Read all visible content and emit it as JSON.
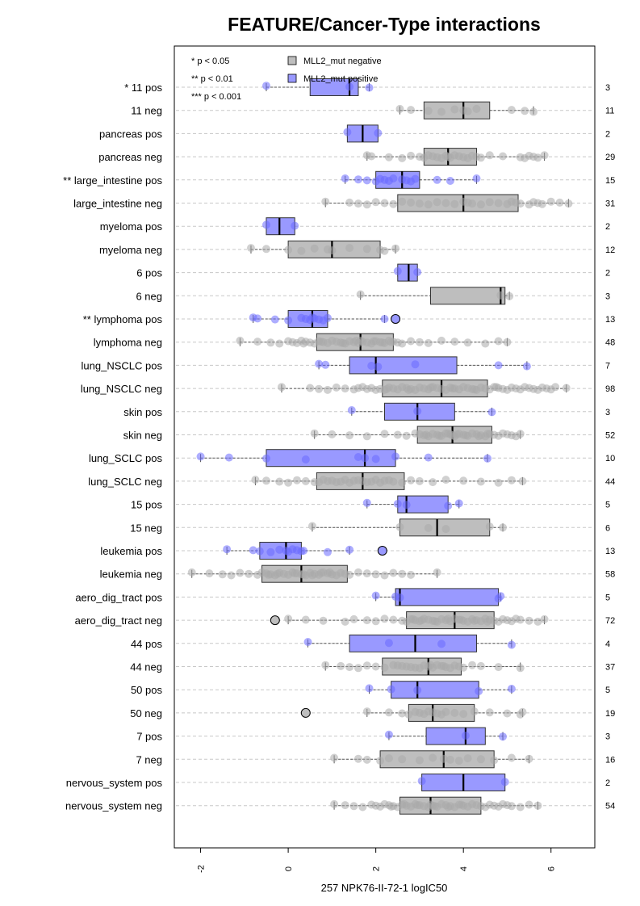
{
  "chart_data": {
    "type": "boxplot",
    "title": "FEATURE/Cancer-Type interactions",
    "xlabel": "257 NPK76-II-72-1 logIC50",
    "xlim": [
      -2.6,
      7.0
    ],
    "xticks": [
      "-2",
      "0",
      "2",
      "4",
      "6"
    ],
    "xtick_values": [
      -2,
      0,
      2,
      4,
      6
    ],
    "grid": true,
    "orientation": "horizontal",
    "colors": {
      "negative": "#bebebe",
      "positive": "#9999ff",
      "negative_point": "#a9a9a9",
      "positive_point": "#6a6aff"
    },
    "legend": {
      "placement": "top-left",
      "significance": [
        "* p < 0.05",
        "** p < 0.01",
        "*** p < 0.001"
      ],
      "entries": [
        {
          "label": "MLL2_mut negative",
          "color": "#bebebe"
        },
        {
          "label": "MLL2_mut positive",
          "color": "#9999ff"
        }
      ]
    },
    "rows": [
      {
        "label": "* 11 pos",
        "count": "3",
        "group": "pos",
        "wlo": -0.5,
        "q1": 0.5,
        "med": 1.4,
        "q3": 1.6,
        "whi": 1.85,
        "points": [
          -0.5,
          1.4,
          1.85
        ]
      },
      {
        "label": "11 neg",
        "count": "11",
        "group": "neg",
        "wlo": 2.55,
        "q1": 3.1,
        "med": 4.0,
        "q3": 4.6,
        "whi": 5.6,
        "points": [
          2.55,
          2.8,
          3.2,
          3.5,
          3.8,
          4.0,
          4.1,
          4.3,
          5.1,
          5.4,
          5.6
        ]
      },
      {
        "label": "pancreas pos",
        "count": "2",
        "group": "pos",
        "wlo": 1.35,
        "q1": 1.35,
        "med": 1.7,
        "q3": 2.05,
        "whi": 2.05,
        "points": [
          1.35,
          2.05
        ]
      },
      {
        "label": "pancreas neg",
        "count": "29",
        "group": "neg",
        "wlo": 1.8,
        "q1": 3.1,
        "med": 3.65,
        "q3": 4.3,
        "whi": 5.85,
        "points": [
          1.8,
          1.9,
          2.3,
          2.6,
          2.8,
          3.0,
          3.1,
          3.2,
          3.3,
          3.4,
          3.5,
          3.6,
          3.65,
          3.7,
          3.8,
          3.9,
          4.0,
          4.1,
          4.2,
          4.3,
          4.4,
          4.6,
          4.9,
          5.3,
          5.4,
          5.5,
          5.6,
          5.7,
          5.85
        ]
      },
      {
        "label": "** large_intestine pos",
        "count": "15",
        "group": "pos",
        "wlo": 1.3,
        "q1": 2.0,
        "med": 2.6,
        "q3": 3.0,
        "whi": 4.3,
        "points": [
          1.3,
          1.6,
          1.8,
          2.0,
          2.1,
          2.2,
          2.3,
          2.4,
          2.6,
          2.7,
          2.8,
          2.9,
          3.4,
          3.7,
          4.3
        ]
      },
      {
        "label": "large_intestine neg",
        "count": "31",
        "group": "neg",
        "wlo": 0.85,
        "q1": 2.5,
        "med": 4.0,
        "q3": 5.25,
        "whi": 6.4,
        "points": [
          0.85,
          1.4,
          1.6,
          1.8,
          2.0,
          2.2,
          2.4,
          2.6,
          2.8,
          3.0,
          3.2,
          3.4,
          3.6,
          3.8,
          4.0,
          4.1,
          4.2,
          4.4,
          4.6,
          4.8,
          5.0,
          5.1,
          5.2,
          5.3,
          5.5,
          5.6,
          5.7,
          5.8,
          6.0,
          6.2,
          6.4
        ]
      },
      {
        "label": "myeloma pos",
        "count": "2",
        "group": "pos",
        "wlo": -0.5,
        "q1": -0.5,
        "med": -0.2,
        "q3": 0.15,
        "whi": 0.15,
        "points": [
          -0.5,
          0.15
        ]
      },
      {
        "label": "myeloma neg",
        "count": "12",
        "group": "neg",
        "wlo": -0.85,
        "q1": 0.0,
        "med": 1.0,
        "q3": 2.1,
        "whi": 2.45,
        "points": [
          -0.85,
          -0.5,
          0.0,
          0.3,
          0.6,
          0.9,
          1.0,
          1.4,
          1.8,
          2.1,
          2.2,
          2.45
        ]
      },
      {
        "label": "6 pos",
        "count": "2",
        "group": "pos",
        "wlo": 2.5,
        "q1": 2.5,
        "med": 2.75,
        "q3": 2.95,
        "whi": 2.95,
        "points": [
          2.5,
          2.95
        ]
      },
      {
        "label": "6 neg",
        "count": "3",
        "group": "neg",
        "wlo": 1.65,
        "q1": 3.25,
        "med": 4.85,
        "q3": 4.95,
        "whi": 5.05,
        "points": [
          1.65,
          4.85,
          5.05
        ]
      },
      {
        "label": "** lymphoma pos",
        "count": "13",
        "group": "pos",
        "wlo": -0.8,
        "q1": 0.0,
        "med": 0.55,
        "q3": 0.9,
        "whi": 2.2,
        "outliers": [
          2.45
        ],
        "points": [
          -0.8,
          -0.7,
          -0.3,
          0.0,
          0.3,
          0.4,
          0.5,
          0.55,
          0.6,
          0.7,
          0.8,
          0.9,
          2.2
        ]
      },
      {
        "label": "lymphoma neg",
        "count": "48",
        "group": "neg",
        "wlo": -1.1,
        "q1": 0.65,
        "med": 1.65,
        "q3": 2.4,
        "whi": 5.0,
        "points": [
          -1.1,
          -0.7,
          -0.4,
          -0.2,
          0.0,
          0.1,
          0.2,
          0.3,
          0.4,
          0.5,
          0.6,
          0.7,
          0.8,
          0.9,
          1.0,
          1.1,
          1.2,
          1.3,
          1.4,
          1.5,
          1.6,
          1.65,
          1.7,
          1.8,
          1.9,
          2.0,
          2.1,
          2.2,
          2.3,
          2.4,
          2.5,
          2.6,
          2.8,
          3.0,
          3.2,
          3.5,
          3.8,
          4.1,
          4.5,
          4.8,
          5.0,
          1.25,
          1.55,
          0.75,
          2.15,
          0.35,
          1.95,
          2.35
        ]
      },
      {
        "label": "lung_NSCLC pos",
        "count": "7",
        "group": "pos",
        "wlo": 0.7,
        "q1": 1.4,
        "med": 2.0,
        "q3": 3.85,
        "whi": 5.45,
        "points": [
          0.7,
          0.85,
          1.9,
          2.05,
          2.9,
          4.8,
          5.45
        ]
      },
      {
        "label": "lung_NSCLC neg",
        "count": "98",
        "group": "neg",
        "wlo": -0.15,
        "q1": 2.15,
        "med": 3.5,
        "q3": 4.55,
        "whi": 6.35,
        "points": [
          -0.15,
          0.5,
          0.7,
          0.9,
          1.1,
          1.3,
          1.5,
          1.7,
          1.9,
          2.1,
          2.2,
          2.3,
          2.4,
          2.5,
          2.6,
          2.7,
          2.8,
          2.9,
          3.0,
          3.1,
          3.2,
          3.3,
          3.4,
          3.5,
          3.6,
          3.7,
          3.8,
          3.9,
          4.0,
          4.1,
          4.2,
          4.3,
          4.4,
          4.5,
          4.6,
          4.7,
          4.8,
          4.9,
          5.0,
          5.1,
          5.2,
          5.3,
          5.4,
          5.5,
          5.6,
          5.7,
          5.8,
          5.9,
          6.0,
          6.1,
          6.35,
          2.25,
          2.75,
          3.25,
          3.75,
          4.25,
          4.75,
          1.6,
          1.8,
          2.0
        ]
      },
      {
        "label": "skin pos",
        "count": "3",
        "group": "pos",
        "wlo": 1.45,
        "q1": 2.2,
        "med": 2.95,
        "q3": 3.8,
        "whi": 4.65,
        "points": [
          1.45,
          2.95,
          4.65
        ]
      },
      {
        "label": "skin neg",
        "count": "52",
        "group": "neg",
        "wlo": 0.6,
        "q1": 2.95,
        "med": 3.75,
        "q3": 4.65,
        "whi": 5.3,
        "points": [
          0.6,
          1.0,
          1.4,
          1.8,
          2.2,
          2.5,
          2.7,
          2.9,
          3.0,
          3.1,
          3.2,
          3.3,
          3.4,
          3.5,
          3.6,
          3.7,
          3.75,
          3.8,
          3.9,
          4.0,
          4.1,
          4.2,
          4.3,
          4.4,
          4.5,
          4.6,
          4.7,
          4.8,
          4.9,
          5.0,
          5.1,
          5.2,
          5.3,
          3.15,
          3.45,
          3.65,
          3.85,
          4.05,
          4.35,
          4.55
        ]
      },
      {
        "label": "lung_SCLC pos",
        "count": "10",
        "group": "pos",
        "wlo": -2.0,
        "q1": -0.5,
        "med": 1.75,
        "q3": 2.45,
        "whi": 4.55,
        "points": [
          -2.0,
          -1.35,
          -0.5,
          0.4,
          1.6,
          1.75,
          2.0,
          2.45,
          3.2,
          4.55
        ]
      },
      {
        "label": "lung_SCLC neg",
        "count": "44",
        "group": "neg",
        "wlo": -0.75,
        "q1": 0.65,
        "med": 1.7,
        "q3": 2.65,
        "whi": 5.35,
        "points": [
          -0.75,
          -0.5,
          -0.2,
          0.0,
          0.2,
          0.4,
          0.6,
          0.8,
          1.0,
          1.2,
          1.4,
          1.6,
          1.7,
          1.8,
          2.0,
          2.2,
          2.4,
          2.6,
          2.8,
          3.0,
          3.3,
          3.6,
          4.0,
          4.4,
          4.8,
          5.1,
          5.35,
          1.1,
          1.3,
          1.5,
          1.9,
          2.1,
          2.3,
          0.9,
          0.7
        ]
      },
      {
        "label": "15 pos",
        "count": "5",
        "group": "pos",
        "wlo": 1.8,
        "q1": 2.5,
        "med": 2.7,
        "q3": 3.65,
        "whi": 3.9,
        "points": [
          1.8,
          2.5,
          2.7,
          3.65,
          3.9
        ]
      },
      {
        "label": "15 neg",
        "count": "6",
        "group": "neg",
        "wlo": 0.55,
        "q1": 2.55,
        "med": 3.4,
        "q3": 4.6,
        "whi": 4.9,
        "points": [
          0.55,
          2.55,
          3.2,
          3.6,
          4.6,
          4.9
        ]
      },
      {
        "label": "leukemia pos",
        "count": "13",
        "group": "pos",
        "wlo": -1.4,
        "q1": -0.65,
        "med": -0.05,
        "q3": 0.3,
        "whi": 1.4,
        "outliers": [
          2.15
        ],
        "points": [
          -1.4,
          -0.8,
          -0.65,
          -0.4,
          -0.2,
          -0.05,
          0.0,
          0.1,
          0.2,
          0.3,
          0.9,
          1.4,
          0.35
        ]
      },
      {
        "label": "leukemia neg",
        "count": "58",
        "group": "neg",
        "wlo": -2.2,
        "q1": -0.6,
        "med": 0.3,
        "q3": 1.35,
        "whi": 3.4,
        "points": [
          -2.2,
          -1.8,
          -1.5,
          -1.3,
          -1.1,
          -0.9,
          -0.7,
          -0.6,
          -0.5,
          -0.4,
          -0.3,
          -0.2,
          -0.1,
          0.0,
          0.1,
          0.2,
          0.3,
          0.4,
          0.5,
          0.6,
          0.7,
          0.8,
          0.9,
          1.0,
          1.1,
          1.2,
          1.3,
          1.4,
          1.6,
          1.8,
          2.0,
          2.2,
          2.4,
          2.6,
          2.8,
          3.4,
          0.15,
          0.35,
          0.55,
          0.75,
          -0.25,
          -0.45,
          0.95
        ]
      },
      {
        "label": "aero_dig_tract pos",
        "count": "5",
        "group": "pos",
        "wlo": 2.0,
        "q1": 2.45,
        "med": 2.55,
        "q3": 4.8,
        "whi": 4.85,
        "points": [
          2.0,
          2.45,
          2.55,
          4.8,
          4.85
        ]
      },
      {
        "label": "aero_dig_tract neg",
        "count": "72",
        "group": "neg",
        "wlo": 0.0,
        "q1": 2.7,
        "med": 3.8,
        "q3": 4.7,
        "whi": 5.85,
        "outliers": [
          -0.3
        ],
        "points": [
          0.0,
          0.4,
          0.8,
          1.3,
          1.5,
          1.8,
          2.0,
          2.2,
          2.4,
          2.6,
          2.7,
          2.8,
          2.9,
          3.0,
          3.1,
          3.2,
          3.3,
          3.4,
          3.5,
          3.6,
          3.7,
          3.8,
          3.9,
          4.0,
          4.1,
          4.2,
          4.3,
          4.4,
          4.5,
          4.6,
          4.7,
          4.8,
          4.9,
          5.0,
          5.1,
          5.2,
          5.3,
          5.5,
          5.7,
          5.85,
          3.05,
          3.35,
          3.65,
          3.95,
          4.25,
          4.55,
          2.85
        ]
      },
      {
        "label": "44 pos",
        "count": "4",
        "group": "pos",
        "wlo": 0.45,
        "q1": 1.4,
        "med": 2.9,
        "q3": 4.3,
        "whi": 5.1,
        "points": [
          0.45,
          2.3,
          3.5,
          5.1
        ]
      },
      {
        "label": "44 neg",
        "count": "37",
        "group": "neg",
        "wlo": 0.85,
        "q1": 2.15,
        "med": 3.2,
        "q3": 3.95,
        "whi": 5.3,
        "points": [
          0.85,
          1.2,
          1.4,
          1.6,
          1.8,
          2.0,
          2.2,
          2.4,
          2.6,
          2.8,
          3.0,
          3.1,
          3.2,
          3.3,
          3.4,
          3.5,
          3.6,
          3.7,
          3.8,
          3.9,
          4.0,
          4.2,
          4.4,
          4.8,
          5.3,
          2.5,
          2.7,
          2.9,
          3.25,
          3.55
        ]
      },
      {
        "label": "50 pos",
        "count": "5",
        "group": "pos",
        "wlo": 1.85,
        "q1": 2.35,
        "med": 2.95,
        "q3": 4.35,
        "whi": 5.1,
        "points": [
          1.85,
          2.35,
          2.95,
          4.35,
          5.1
        ]
      },
      {
        "label": "50 neg",
        "count": "19",
        "group": "neg",
        "wlo": 1.8,
        "q1": 2.75,
        "med": 3.3,
        "q3": 4.25,
        "whi": 5.35,
        "outliers": [
          0.4
        ],
        "points": [
          1.8,
          2.3,
          2.6,
          2.75,
          2.9,
          3.0,
          3.1,
          3.2,
          3.3,
          3.4,
          3.5,
          3.6,
          3.8,
          4.0,
          4.25,
          4.6,
          5.0,
          5.3,
          5.35
        ]
      },
      {
        "label": "7 pos",
        "count": "3",
        "group": "pos",
        "wlo": 2.3,
        "q1": 3.15,
        "med": 4.05,
        "q3": 4.5,
        "whi": 4.9,
        "points": [
          2.3,
          4.05,
          4.9
        ]
      },
      {
        "label": "7 neg",
        "count": "16",
        "group": "neg",
        "wlo": 1.05,
        "q1": 2.1,
        "med": 3.55,
        "q3": 4.7,
        "whi": 5.5,
        "points": [
          1.05,
          1.6,
          1.8,
          2.1,
          2.3,
          2.6,
          3.0,
          3.3,
          3.55,
          3.7,
          3.9,
          4.1,
          4.4,
          4.7,
          5.1,
          5.5
        ]
      },
      {
        "label": "nervous_system pos",
        "count": "2",
        "group": "pos",
        "wlo": 3.05,
        "q1": 3.05,
        "med": 4.0,
        "q3": 4.95,
        "whi": 4.95,
        "points": [
          3.05,
          4.95
        ]
      },
      {
        "label": "nervous_system neg",
        "count": "54",
        "group": "neg",
        "wlo": 1.05,
        "q1": 2.55,
        "med": 3.25,
        "q3": 4.4,
        "whi": 5.7,
        "points": [
          1.05,
          1.3,
          1.5,
          1.7,
          1.9,
          2.0,
          2.1,
          2.2,
          2.3,
          2.4,
          2.5,
          2.6,
          2.7,
          2.8,
          2.9,
          3.0,
          3.1,
          3.2,
          3.25,
          3.3,
          3.4,
          3.5,
          3.6,
          3.7,
          3.8,
          3.9,
          4.0,
          4.1,
          4.2,
          4.3,
          4.4,
          4.5,
          4.6,
          4.7,
          4.8,
          4.9,
          5.0,
          5.1,
          5.3,
          5.5,
          5.7,
          2.35,
          2.65,
          2.95,
          3.35,
          3.65,
          3.95
        ]
      }
    ]
  }
}
